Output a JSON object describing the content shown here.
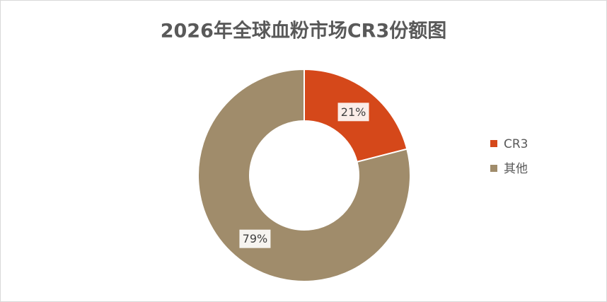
{
  "chart_data": {
    "type": "donut",
    "title": "2026年全球血粉市场CR3份额图",
    "categories": [
      "CR3",
      "其他"
    ],
    "values": [
      21,
      79
    ],
    "value_labels": [
      "21%",
      "79%"
    ],
    "colors": [
      "#d5481a",
      "#a08c6b"
    ],
    "legend": "right"
  }
}
